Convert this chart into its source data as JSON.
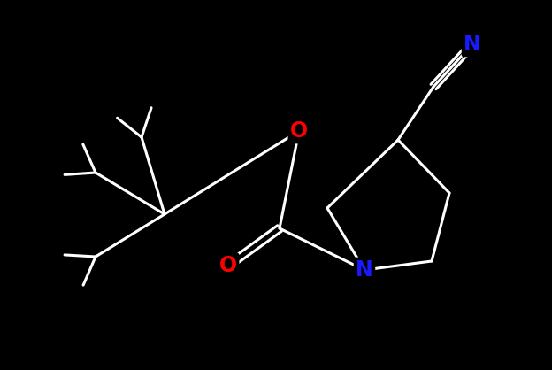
{
  "background_color": "#000000",
  "bond_color": "#ffffff",
  "bond_width": 2.2,
  "atom_colors": {
    "N_nitrile": "#1a1aff",
    "N_ring": "#1a1aff",
    "O_ether": "#ff0000",
    "O_carbonyl": "#ff0000"
  },
  "figsize": [
    6.24,
    4.18
  ],
  "dpi": 100,
  "xlim": [
    0,
    624
  ],
  "ylim": [
    0,
    418
  ]
}
